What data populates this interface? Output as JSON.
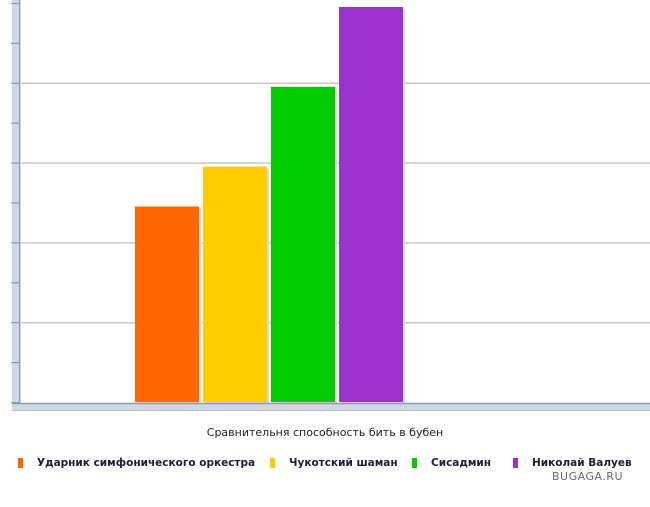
{
  "chart_data": {
    "type": "bar",
    "categories": [
      "Ударник симфонического оркестра",
      "Чукотский шаман",
      "Сисадмин",
      "Николай Валуев"
    ],
    "values": [
      49,
      59,
      79,
      99
    ],
    "ylim": [
      0,
      100
    ],
    "colors": [
      "#ff6600",
      "#ffcc00",
      "#00cc00",
      "#9933cc"
    ],
    "grid": true,
    "legend_position": "bottom",
    "caption": "Сравнительня способность бить в бубен"
  },
  "watermark": "BUGAGA.RU"
}
